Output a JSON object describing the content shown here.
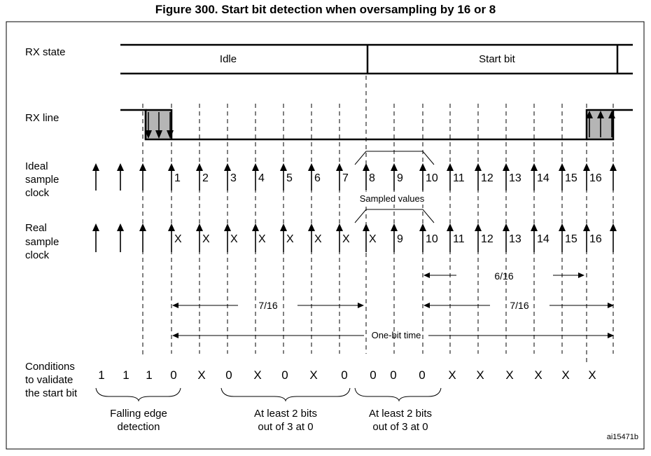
{
  "title": "Figure 300. Start bit detection when oversampling by 16 or 8",
  "row_labels": {
    "rx_state": [
      "RX state"
    ],
    "rx_line": [
      "RX line"
    ],
    "ideal": [
      "Ideal",
      "sample",
      "clock"
    ],
    "real": [
      "Real",
      "sample",
      "clock"
    ],
    "conditions": [
      "Conditions",
      "to validate",
      "the start bit"
    ]
  },
  "rx_state": {
    "idle": "Idle",
    "start_bit": "Start bit"
  },
  "ideal_sample_labels": [
    "1",
    "2",
    "3",
    "4",
    "5",
    "6",
    "7",
    "8",
    "9",
    "10",
    "11",
    "12",
    "13",
    "14",
    "15",
    "16"
  ],
  "real_sample_labels": [
    "X",
    "X",
    "X",
    "X",
    "X",
    "X",
    "X",
    "X",
    "9",
    "10",
    "11",
    "12",
    "13",
    "14",
    "15",
    "16"
  ],
  "sampled_values_label": "Sampled values",
  "measurements": {
    "six_sixteenths": "6/16",
    "seven_sixteenths_left": "7/16",
    "seven_sixteenths_right": "7/16",
    "one_bit_time": "One-bit time"
  },
  "conditions": [
    "1",
    "1",
    "1",
    "0",
    "X",
    "0",
    "X",
    "0",
    "X",
    "0",
    "0",
    "0",
    "0",
    "X",
    "X",
    "X",
    "X",
    "X",
    "X"
  ],
  "groups": {
    "falling_edge": [
      "Falling edge",
      "detection"
    ],
    "first_majority": [
      "At least 2 bits",
      "out of 3 at 0"
    ],
    "second_majority": [
      "At least 2 bits",
      "out of 3 at 0"
    ]
  },
  "figure_id": "ai15471b"
}
